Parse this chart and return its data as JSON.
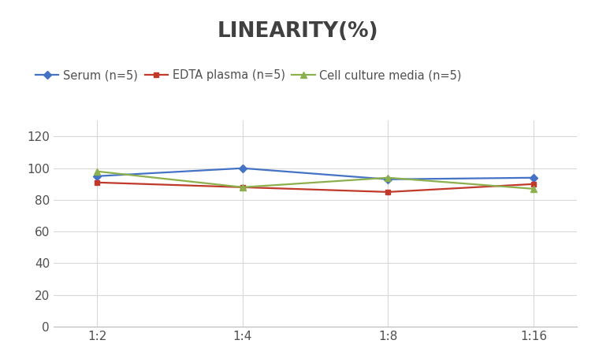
{
  "title": "LINEARITY(%)",
  "x_labels": [
    "1:2",
    "1:4",
    "1:8",
    "1:16"
  ],
  "x_positions": [
    0,
    1,
    2,
    3
  ],
  "series": [
    {
      "label": "Serum (n=5)",
      "values": [
        95,
        100,
        93,
        94
      ],
      "color": "#4472C4",
      "marker": "D",
      "marker_size": 5,
      "linewidth": 1.6
    },
    {
      "label": "EDTA plasma (n=5)",
      "values": [
        91,
        88,
        85,
        90
      ],
      "color": "#C0392B",
      "marker": "s",
      "marker_size": 5,
      "linewidth": 1.6
    },
    {
      "label": "Cell culture media (n=5)",
      "values": [
        98,
        88,
        94,
        87
      ],
      "color": "#8DB04E",
      "marker": "^",
      "marker_size": 6,
      "linewidth": 1.6
    }
  ],
  "ylim": [
    0,
    130
  ],
  "yticks": [
    0,
    20,
    40,
    60,
    80,
    100,
    120
  ],
  "grid_color": "#D8D8D8",
  "background_color": "#FFFFFF",
  "title_fontsize": 19,
  "legend_fontsize": 10.5,
  "tick_fontsize": 11,
  "title_color": "#404040"
}
